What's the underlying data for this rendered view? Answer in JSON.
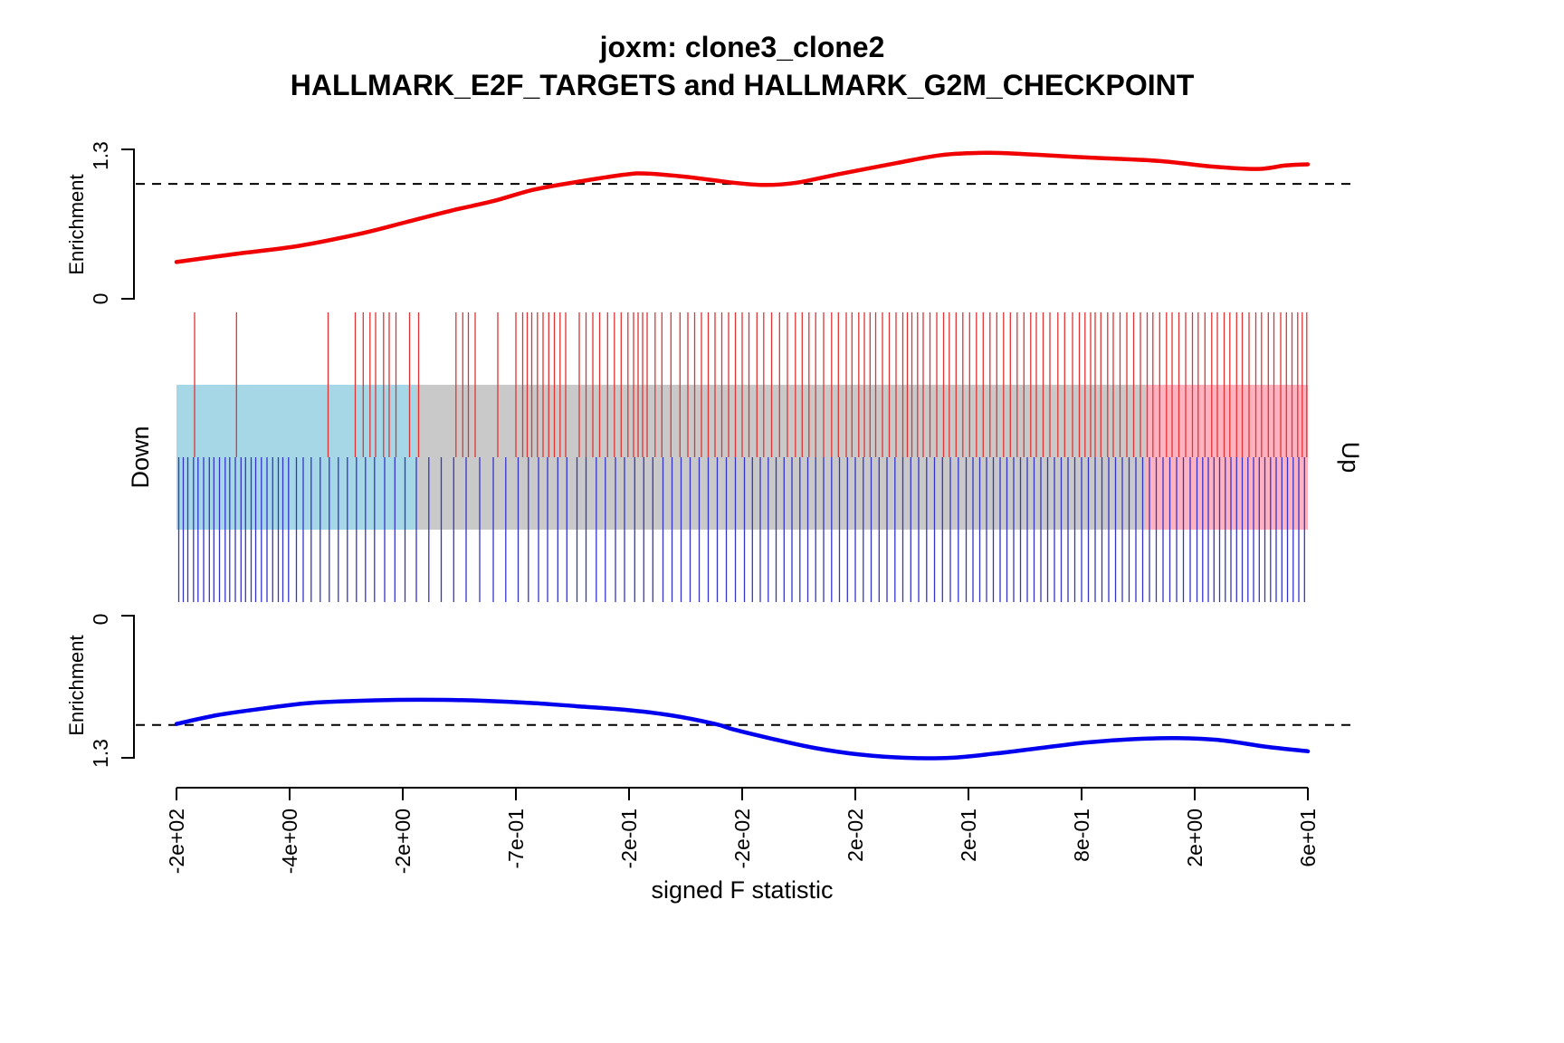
{
  "chart_data": {
    "type": "barcode-enrichment",
    "title": "joxm: clone3_clone2",
    "subtitle": "HALLMARK_E2F_TARGETS and HALLMARK_G2M_CHECKPOINT",
    "xlabel": "signed F statistic",
    "x_tick_labels": [
      "-2e+02",
      "-4e+00",
      "-2e+00",
      "-7e-01",
      "-2e-01",
      "-2e-02",
      "2e-02",
      "2e-01",
      "8e-01",
      "2e+00",
      "6e+01"
    ],
    "enrichment_axis": {
      "label": "Enrichment",
      "tick_low": "0",
      "tick_high": "1.3",
      "range": [
        0,
        1.3
      ],
      "threshold": 1.0
    },
    "down_label": "Down",
    "up_label": "Up",
    "colors": {
      "red": "#f00000",
      "blue": "#0000ee",
      "red_tick": "#e03434",
      "blue_tick": "#3434cc",
      "band_left": "#a6d7e6",
      "band_mid": "#c9c9c9",
      "band_right": "#ffb3c1"
    },
    "bands": {
      "left_end": 0.212,
      "right_start": 0.856
    },
    "red_worm": {
      "x": [
        0.0,
        0.052,
        0.108,
        0.164,
        0.204,
        0.244,
        0.28,
        0.316,
        0.356,
        0.396,
        0.416,
        0.452,
        0.492,
        0.52,
        0.548,
        0.588,
        0.636,
        0.676,
        0.716,
        0.748,
        0.804,
        0.868,
        0.916,
        0.956,
        0.98,
        1.0
      ],
      "y": [
        0.32,
        0.39,
        0.46,
        0.57,
        0.67,
        0.77,
        0.85,
        0.95,
        1.02,
        1.08,
        1.09,
        1.06,
        1.01,
        0.99,
        1.01,
        1.09,
        1.18,
        1.25,
        1.27,
        1.26,
        1.23,
        1.2,
        1.15,
        1.13,
        1.16,
        1.17
      ]
    },
    "blue_worm": {
      "x": [
        0.0,
        0.036,
        0.076,
        0.116,
        0.156,
        0.196,
        0.236,
        0.276,
        0.316,
        0.356,
        0.396,
        0.436,
        0.476,
        0.492,
        0.524,
        0.564,
        0.604,
        0.644,
        0.684,
        0.724,
        0.764,
        0.804,
        0.844,
        0.884,
        0.924,
        0.964,
        1.0
      ],
      "y": [
        0.99,
        0.91,
        0.85,
        0.8,
        0.78,
        0.77,
        0.77,
        0.78,
        0.8,
        0.83,
        0.86,
        0.91,
        0.99,
        1.04,
        1.12,
        1.21,
        1.27,
        1.3,
        1.3,
        1.26,
        1.21,
        1.16,
        1.13,
        1.12,
        1.14,
        1.2,
        1.24
      ]
    },
    "red_ticks": [
      0.016,
      0.053,
      0.134,
      0.158,
      0.165,
      0.171,
      0.176,
      0.183,
      0.188,
      0.194,
      0.206,
      0.214,
      0.247,
      0.253,
      0.258,
      0.264,
      0.284,
      0.3,
      0.306,
      0.31,
      0.314,
      0.319,
      0.324,
      0.329,
      0.334,
      0.339,
      0.344,
      0.356,
      0.362,
      0.368,
      0.374,
      0.381,
      0.387,
      0.393,
      0.399,
      0.404,
      0.408,
      0.412,
      0.416,
      0.423,
      0.429,
      0.437,
      0.445,
      0.452,
      0.458,
      0.464,
      0.47,
      0.476,
      0.482,
      0.488,
      0.494,
      0.5,
      0.506,
      0.513,
      0.519,
      0.526,
      0.533,
      0.54,
      0.547,
      0.553,
      0.559,
      0.565,
      0.572,
      0.579,
      0.585,
      0.592,
      0.597,
      0.603,
      0.608,
      0.613,
      0.618,
      0.624,
      0.63,
      0.636,
      0.642,
      0.646,
      0.65,
      0.655,
      0.66,
      0.666,
      0.672,
      0.678,
      0.683,
      0.689,
      0.695,
      0.701,
      0.707,
      0.713,
      0.719,
      0.725,
      0.731,
      0.737,
      0.743,
      0.749,
      0.755,
      0.76,
      0.766,
      0.772,
      0.779,
      0.785,
      0.792,
      0.798,
      0.803,
      0.808,
      0.812,
      0.817,
      0.823,
      0.828,
      0.834,
      0.84,
      0.846,
      0.852,
      0.858,
      0.863,
      0.869,
      0.875,
      0.88,
      0.886,
      0.892,
      0.898,
      0.903,
      0.909,
      0.915,
      0.92,
      0.926,
      0.931,
      0.937,
      0.942,
      0.948,
      0.954,
      0.959,
      0.965,
      0.97,
      0.976,
      0.981,
      0.986,
      0.991,
      0.995,
      0.999
    ],
    "blue_ticks": [
      0.002,
      0.006,
      0.01,
      0.015,
      0.019,
      0.024,
      0.029,
      0.033,
      0.038,
      0.043,
      0.047,
      0.052,
      0.057,
      0.061,
      0.066,
      0.07,
      0.075,
      0.08,
      0.085,
      0.09,
      0.094,
      0.099,
      0.106,
      0.112,
      0.119,
      0.127,
      0.135,
      0.143,
      0.151,
      0.159,
      0.167,
      0.175,
      0.184,
      0.193,
      0.202,
      0.212,
      0.223,
      0.234,
      0.245,
      0.256,
      0.268,
      0.28,
      0.291,
      0.302,
      0.311,
      0.32,
      0.328,
      0.337,
      0.345,
      0.354,
      0.362,
      0.371,
      0.379,
      0.388,
      0.396,
      0.405,
      0.413,
      0.421,
      0.43,
      0.438,
      0.446,
      0.454,
      0.462,
      0.47,
      0.478,
      0.486,
      0.494,
      0.502,
      0.509,
      0.516,
      0.523,
      0.53,
      0.537,
      0.544,
      0.551,
      0.558,
      0.565,
      0.572,
      0.579,
      0.586,
      0.593,
      0.6,
      0.607,
      0.614,
      0.621,
      0.628,
      0.635,
      0.642,
      0.649,
      0.656,
      0.663,
      0.67,
      0.677,
      0.684,
      0.691,
      0.698,
      0.704,
      0.71,
      0.716,
      0.722,
      0.728,
      0.734,
      0.74,
      0.746,
      0.752,
      0.758,
      0.764,
      0.77,
      0.776,
      0.782,
      0.788,
      0.794,
      0.8,
      0.806,
      0.812,
      0.818,
      0.824,
      0.83,
      0.836,
      0.842,
      0.848,
      0.854,
      0.86,
      0.866,
      0.872,
      0.878,
      0.884,
      0.89,
      0.896,
      0.902,
      0.907,
      0.912,
      0.917,
      0.922,
      0.927,
      0.932,
      0.937,
      0.942,
      0.947,
      0.952,
      0.957,
      0.962,
      0.967,
      0.972,
      0.977,
      0.982,
      0.987,
      0.992,
      0.997
    ]
  }
}
